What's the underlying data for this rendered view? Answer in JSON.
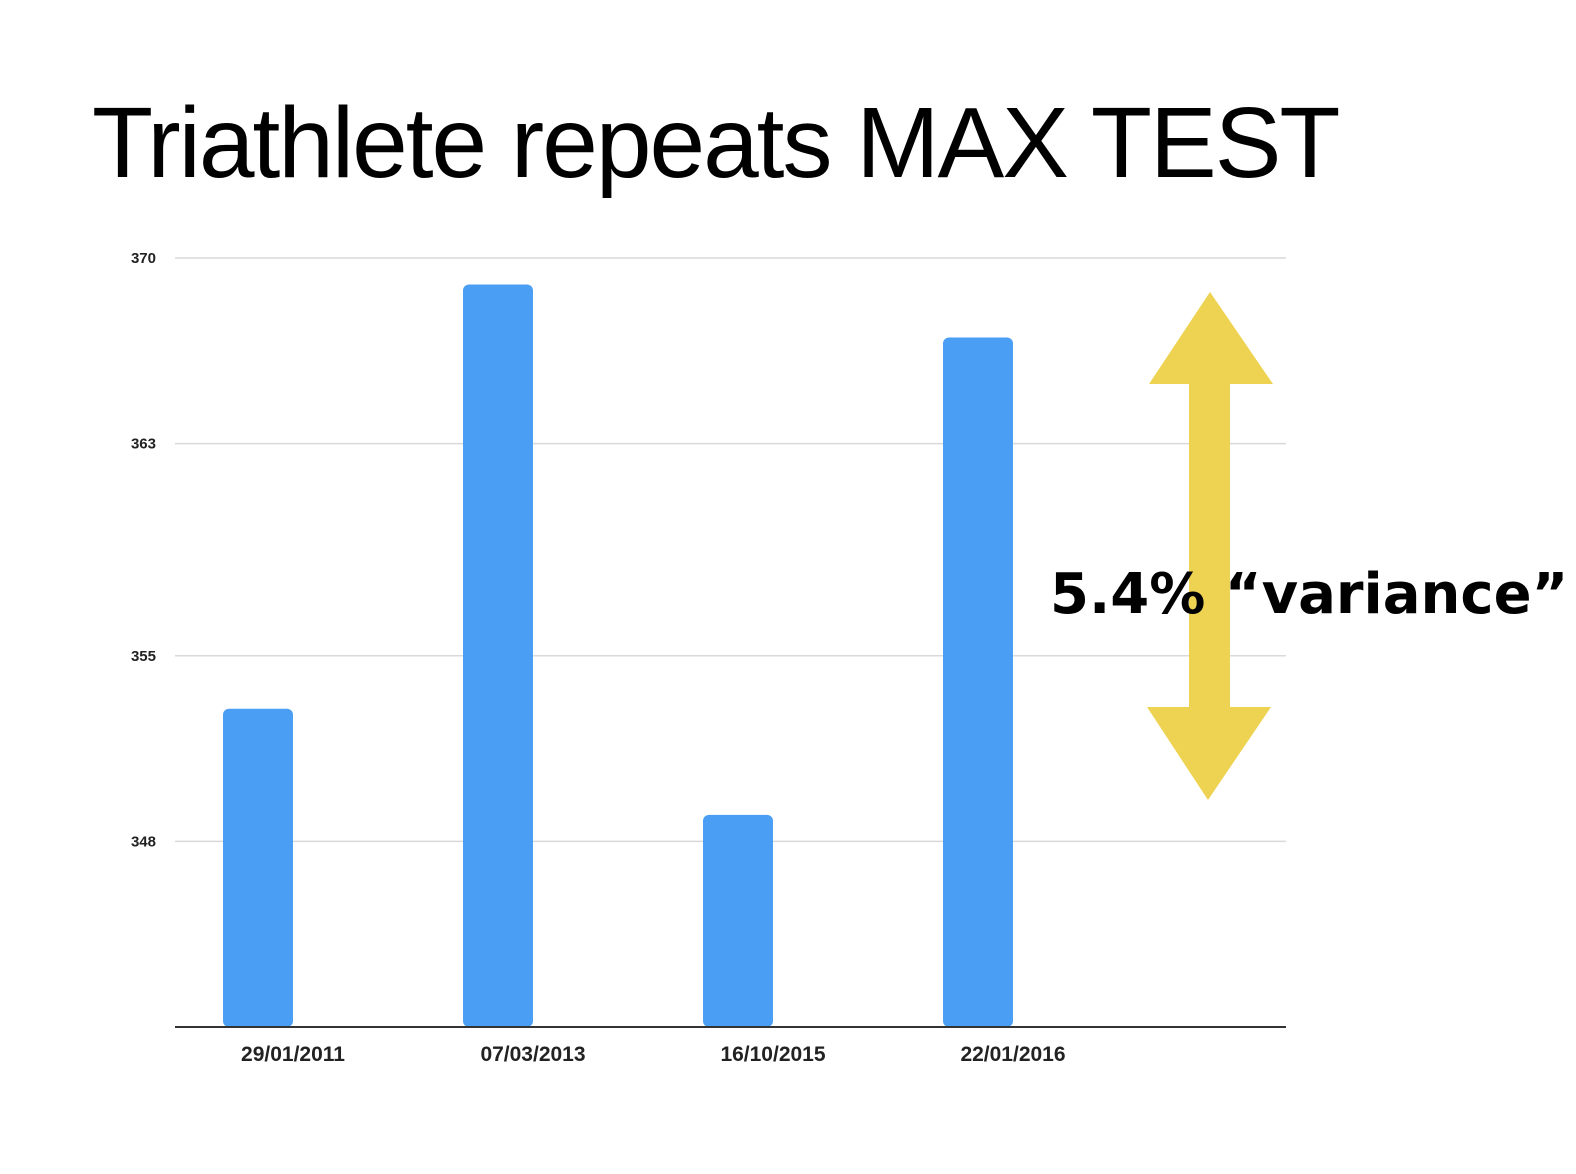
{
  "title": "Triathlete repeats MAX TEST",
  "annotation_text": "5.4% “variance”",
  "colors": {
    "bar": "#4a9ff5",
    "arrow": "#eed352",
    "grid": "#d9d9d9",
    "axis": "#333333"
  },
  "chart_data": {
    "type": "bar",
    "title": "",
    "xlabel": "",
    "ylabel": "",
    "categories": [
      "29/01/2011",
      "07/03/2013",
      "16/10/2015",
      "22/01/2016"
    ],
    "values": [
      353,
      369,
      349,
      367
    ],
    "ylim": [
      341,
      370
    ],
    "yticks": [
      348,
      355,
      363,
      370
    ],
    "ytick_labels": [
      "348",
      "355",
      "363",
      "370"
    ],
    "grid": true,
    "legend": "none"
  }
}
